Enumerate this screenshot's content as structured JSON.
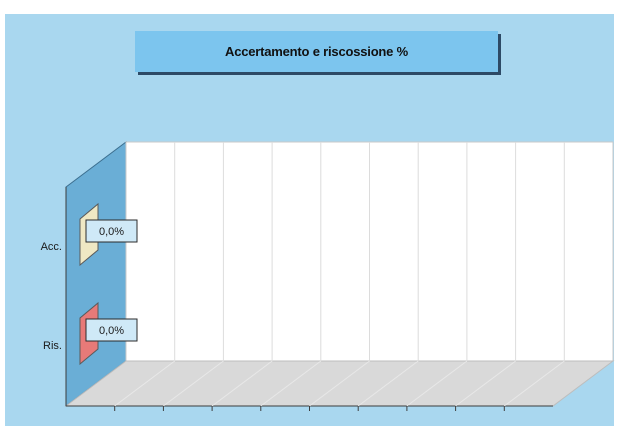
{
  "chart_data": {
    "type": "bar",
    "orientation": "horizontal",
    "three_d": true,
    "title": "Accertamento e riscossione %",
    "categories": [
      "Acc.",
      "Ris."
    ],
    "values": [
      0.0,
      0.0
    ],
    "data_labels": [
      "0,0%",
      "0,0%"
    ],
    "series_colors": [
      "#efe8c4",
      "#e77a78"
    ],
    "gridlines": 10,
    "legend": "none"
  },
  "colors": {
    "background": "#a9d7ef",
    "title_box": "#7cc5ee",
    "side_wall": "#6aaed6",
    "floor": "#d9d9d9",
    "back_wall": "#ffffff"
  }
}
